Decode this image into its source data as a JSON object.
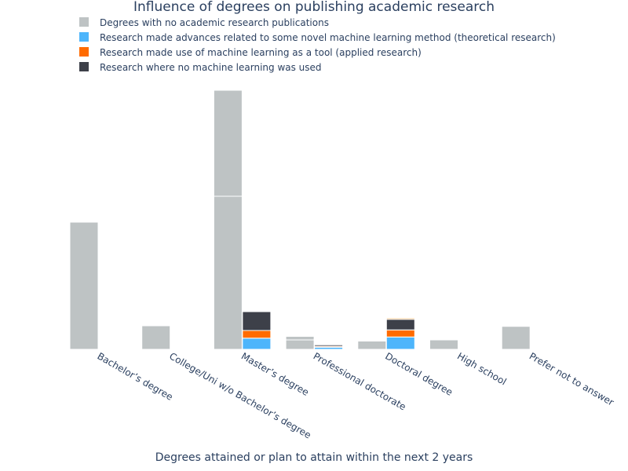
{
  "chart_data": {
    "type": "bar",
    "title": "Influence of degrees on publishing academic research",
    "xlabel": "Degrees attained or plan to attain within the next 2 years",
    "ylabel": "",
    "ylim": [
      0,
      2300
    ],
    "legend_position": "top-left",
    "categories": [
      "Bachelor’s degree",
      "College/Uni w/o Bachelor’s degree",
      "Master’s degree",
      "Professional doctorate",
      "Doctoral degree",
      "High school",
      "Prefer not to answer"
    ],
    "no_publication_series": {
      "name": "Degrees with no academic research publications",
      "color": "#bec3c4",
      "segments": [
        [
          1080
        ],
        [
          200
        ],
        [
          1300,
          900
        ],
        [
          80,
          30
        ],
        [
          70
        ],
        [
          80
        ],
        [
          195
        ]
      ]
    },
    "research_series": [
      {
        "name": "Research made advances related to some novel machine learning method (theoretical research)",
        "color": "#4db5fb",
        "values": [
          0,
          0,
          95,
          18,
          105,
          0,
          0
        ]
      },
      {
        "name": "Research made use of machine learning as a tool (applied research)",
        "color": "#ff6b00",
        "values": [
          0,
          0,
          65,
          8,
          60,
          0,
          0
        ]
      },
      {
        "name": "Research where no machine learning was used",
        "color": "#3d4049",
        "values": [
          0,
          0,
          160,
          12,
          90,
          0,
          0
        ]
      }
    ],
    "research_top_strip": [
      0,
      0,
      0,
      0,
      10,
      0,
      0
    ],
    "research_top_strip_color": "#ff9a33"
  }
}
